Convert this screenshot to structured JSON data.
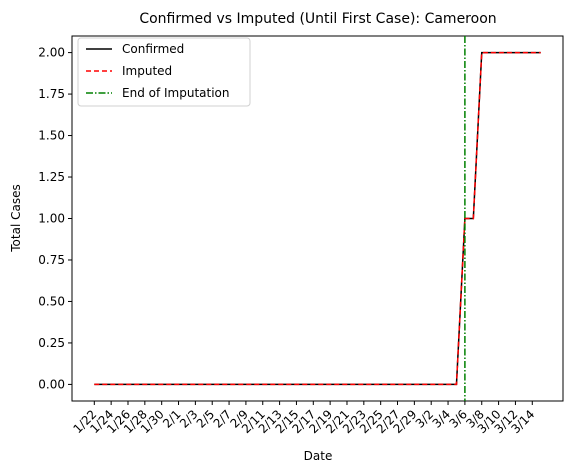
{
  "chart_data": {
    "type": "line",
    "title": "Confirmed vs Imputed (Until First Case): Cameroon",
    "xlabel": "Date",
    "ylabel": "Total Cases",
    "x": [
      "1/22",
      "1/23",
      "1/24",
      "1/25",
      "1/26",
      "1/27",
      "1/28",
      "1/29",
      "1/30",
      "1/31",
      "2/1",
      "2/2",
      "2/3",
      "2/4",
      "2/5",
      "2/6",
      "2/7",
      "2/8",
      "2/9",
      "2/10",
      "2/11",
      "2/12",
      "2/13",
      "2/14",
      "2/15",
      "2/16",
      "2/17",
      "2/18",
      "2/19",
      "2/20",
      "2/21",
      "2/22",
      "2/23",
      "2/24",
      "2/25",
      "2/26",
      "2/27",
      "2/28",
      "2/29",
      "3/1",
      "3/2",
      "3/3",
      "3/4",
      "3/5",
      "3/6",
      "3/7",
      "3/8",
      "3/9",
      "3/10",
      "3/11",
      "3/12",
      "3/13",
      "3/14",
      "3/15"
    ],
    "x_tick_labels": [
      "1/22",
      "1/24",
      "1/26",
      "1/28",
      "1/30",
      "2/1",
      "2/3",
      "2/5",
      "2/7",
      "2/9",
      "2/11",
      "2/13",
      "2/15",
      "2/17",
      "2/19",
      "2/21",
      "2/23",
      "2/25",
      "2/27",
      "2/29",
      "3/2",
      "3/4",
      "3/6",
      "3/8",
      "3/10",
      "3/12",
      "3/14"
    ],
    "y_ticks": [
      "0.00",
      "0.25",
      "0.50",
      "0.75",
      "1.00",
      "1.25",
      "1.50",
      "1.75",
      "2.00"
    ],
    "ylim": [
      -0.1,
      2.1
    ],
    "series": [
      {
        "name": "Confirmed",
        "color": "#000000",
        "style": "solid",
        "values": [
          0,
          0,
          0,
          0,
          0,
          0,
          0,
          0,
          0,
          0,
          0,
          0,
          0,
          0,
          0,
          0,
          0,
          0,
          0,
          0,
          0,
          0,
          0,
          0,
          0,
          0,
          0,
          0,
          0,
          0,
          0,
          0,
          0,
          0,
          0,
          0,
          0,
          0,
          0,
          0,
          0,
          0,
          0,
          0,
          1,
          1,
          2,
          2,
          2,
          2,
          2,
          2,
          2,
          2
        ]
      },
      {
        "name": "Imputed",
        "color": "#ff0000",
        "style": "dashed",
        "values": [
          0,
          0,
          0,
          0,
          0,
          0,
          0,
          0,
          0,
          0,
          0,
          0,
          0,
          0,
          0,
          0,
          0,
          0,
          0,
          0,
          0,
          0,
          0,
          0,
          0,
          0,
          0,
          0,
          0,
          0,
          0,
          0,
          0,
          0,
          0,
          0,
          0,
          0,
          0,
          0,
          0,
          0,
          0,
          0,
          1,
          1,
          2,
          2,
          2,
          2,
          2,
          2,
          2,
          2
        ]
      }
    ],
    "vline": {
      "name": "End of Imputation",
      "x": "3/6",
      "color": "#008000",
      "style": "dashdot"
    },
    "legend": "top-left",
    "grid": false
  }
}
